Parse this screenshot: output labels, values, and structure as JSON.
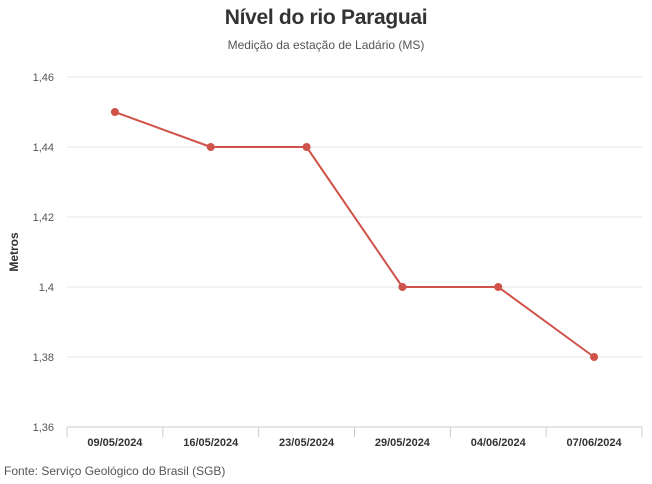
{
  "chart_data": {
    "type": "line",
    "title": "Nível do rio Paraguai",
    "subtitle": "Medição da estação de Ladário (MS)",
    "ylabel": "Metros",
    "xlabel": "",
    "categories": [
      "09/05/2024",
      "16/05/2024",
      "23/05/2024",
      "29/05/2024",
      "04/06/2024",
      "07/06/2024"
    ],
    "series": [
      {
        "values": [
          1.45,
          1.44,
          1.44,
          1.4,
          1.4,
          1.38
        ],
        "color": "#d0534a"
      }
    ],
    "ylim": [
      1.36,
      1.46
    ],
    "yticks": [
      "1,36",
      "1,38",
      "1,4",
      "1,42",
      "1,44",
      "1,46"
    ],
    "grid": true,
    "legend": "none"
  },
  "source": "Fonte: Serviço Geológico do Brasil (SGB)"
}
